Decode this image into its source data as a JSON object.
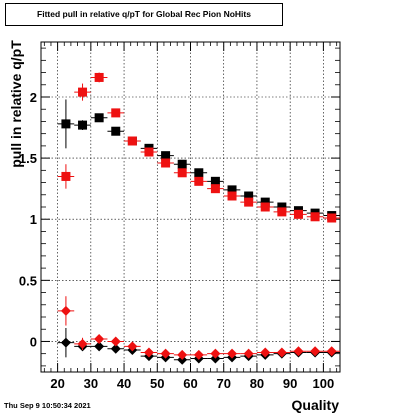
{
  "chart_data": {
    "type": "scatter",
    "title": "Fitted pull in relative q/pT for Global Rec Pion NoHits",
    "xlabel": "Quality",
    "ylabel": "pull in relative q/pT",
    "xlim": [
      15,
      105
    ],
    "ylim": [
      -0.25,
      2.45
    ],
    "x_ticks": [
      "20",
      "30",
      "40",
      "50",
      "60",
      "70",
      "80",
      "90",
      "100"
    ],
    "y_ticks": [
      "0",
      "0.5",
      "1",
      "1.5",
      "2"
    ],
    "grid": true,
    "colors": {
      "black": "#000000",
      "red": "#ee1111"
    },
    "series": [
      {
        "marker": "square",
        "color": "black",
        "x": [
          22.5,
          27.5,
          32.5,
          37.5,
          42.5,
          47.5,
          52.5,
          57.5,
          62.5,
          67.5,
          72.5,
          77.5,
          82.5,
          87.5,
          92.5,
          97.5,
          102.5
        ],
        "y": [
          1.78,
          1.77,
          1.83,
          1.72,
          1.64,
          1.58,
          1.52,
          1.45,
          1.38,
          1.31,
          1.24,
          1.19,
          1.14,
          1.1,
          1.07,
          1.05,
          1.03
        ],
        "yerr": [
          0.2,
          0.04,
          0.03,
          0.02,
          0.02,
          0.015,
          0.015,
          0.015,
          0.015,
          0.015,
          0.015,
          0.015,
          0.015,
          0.015,
          0.015,
          0.015,
          0.015
        ]
      },
      {
        "marker": "square",
        "color": "red",
        "x": [
          22.5,
          27.5,
          32.5,
          37.5,
          42.5,
          47.5,
          52.5,
          57.5,
          62.5,
          67.5,
          72.5,
          77.5,
          82.5,
          87.5,
          92.5,
          97.5,
          102.5
        ],
        "y": [
          1.35,
          2.04,
          2.16,
          1.87,
          1.64,
          1.55,
          1.46,
          1.38,
          1.31,
          1.25,
          1.19,
          1.14,
          1.1,
          1.06,
          1.04,
          1.02,
          1.01
        ],
        "yerr": [
          0.1,
          0.07,
          0.04,
          0.02,
          0.02,
          0.015,
          0.015,
          0.015,
          0.015,
          0.015,
          0.015,
          0.015,
          0.015,
          0.015,
          0.015,
          0.015,
          0.015
        ]
      },
      {
        "marker": "diamond",
        "color": "black",
        "x": [
          22.5,
          27.5,
          32.5,
          37.5,
          42.5,
          47.5,
          52.5,
          57.5,
          62.5,
          67.5,
          72.5,
          77.5,
          82.5,
          87.5,
          92.5,
          97.5,
          102.5
        ],
        "y": [
          -0.01,
          -0.04,
          -0.04,
          -0.06,
          -0.07,
          -0.12,
          -0.13,
          -0.15,
          -0.14,
          -0.14,
          -0.13,
          -0.12,
          -0.11,
          -0.1,
          -0.09,
          -0.09,
          -0.09
        ],
        "yerr": [
          0.12,
          0.03,
          0.02,
          0.02,
          0.015,
          0.01,
          0.01,
          0.01,
          0.01,
          0.01,
          0.01,
          0.01,
          0.01,
          0.01,
          0.01,
          0.01,
          0.01
        ]
      },
      {
        "marker": "diamond",
        "color": "red",
        "x": [
          22.5,
          27.5,
          32.5,
          37.5,
          42.5,
          47.5,
          52.5,
          57.5,
          62.5,
          67.5,
          72.5,
          77.5,
          82.5,
          87.5,
          92.5,
          97.5,
          102.5
        ],
        "y": [
          0.25,
          -0.02,
          0.02,
          0.0,
          -0.04,
          -0.09,
          -0.1,
          -0.11,
          -0.11,
          -0.1,
          -0.1,
          -0.1,
          -0.09,
          -0.09,
          -0.08,
          -0.08,
          -0.08
        ],
        "yerr": [
          0.12,
          0.05,
          0.03,
          0.02,
          0.015,
          0.01,
          0.01,
          0.01,
          0.01,
          0.01,
          0.01,
          0.01,
          0.01,
          0.01,
          0.01,
          0.01,
          0.01
        ]
      }
    ]
  },
  "footer": {
    "timestamp": "Thu Sep  9 10:50:34 2021"
  }
}
